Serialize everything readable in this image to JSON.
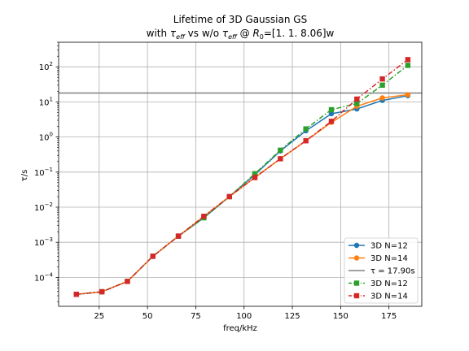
{
  "chart_data": {
    "type": "line",
    "title": "Lifetime of 3D Gaussian GS",
    "subtitle": {
      "pre": "with ",
      "tau": "τ",
      "sub1": "eff",
      "mid": " vs w/o ",
      "tau2": "τ",
      "sub2": "eff",
      "at": " @ ",
      "R": "R",
      "sub3": "0",
      "post": "=[1.   1.   8.06]w"
    },
    "xlabel": "freq/kHz",
    "ylabel": "τ/s",
    "xlim": [
      4,
      192
    ],
    "ylim": [
      1.5e-05,
      500
    ],
    "yscale": "log",
    "grid": true,
    "legend_position": "lower-right",
    "x_ticks": [
      25,
      50,
      75,
      100,
      125,
      150,
      175
    ],
    "y_ticks": [
      {
        "exp": -4,
        "label_base": "10",
        "label_exp": "−4"
      },
      {
        "exp": -3,
        "label_base": "10",
        "label_exp": "−3"
      },
      {
        "exp": -2,
        "label_base": "10",
        "label_exp": "−2"
      },
      {
        "exp": -1,
        "label_base": "10",
        "label_exp": "−1"
      },
      {
        "exp": 0,
        "label_base": "10",
        "label_exp": "0"
      },
      {
        "exp": 1,
        "label_base": "10",
        "label_exp": "1"
      },
      {
        "exp": 2,
        "label_base": "10",
        "label_exp": "2"
      }
    ],
    "hline": {
      "value": 17.9,
      "color": "#808080",
      "label": "τ = 17.90s"
    },
    "series": [
      {
        "name": "3D N=12",
        "color": "#1f77b4",
        "marker": "circle",
        "linestyle": "solid",
        "x": [
          13.2,
          26.4,
          39.6,
          52.8,
          66.0,
          79.2,
          92.4,
          105.6,
          118.8,
          132.0,
          145.2,
          158.4,
          171.6,
          184.8
        ],
        "values": [
          3.3e-05,
          3.9e-05,
          7.7e-05,
          0.0004,
          0.0015,
          0.005,
          0.02,
          0.085,
          0.4,
          1.5,
          4.6,
          6.3,
          11,
          15
        ]
      },
      {
        "name": "3D N=14",
        "color": "#ff7f0e",
        "marker": "circle",
        "linestyle": "solid",
        "x": [
          13.2,
          26.4,
          39.6,
          52.8,
          66.0,
          79.2,
          92.4,
          105.6,
          118.8,
          132.0,
          145.2,
          158.4,
          171.6,
          184.8
        ],
        "values": [
          3.3e-05,
          3.9e-05,
          7.7e-05,
          0.0004,
          0.0015,
          0.0055,
          0.02,
          0.07,
          0.24,
          0.78,
          2.6,
          7.5,
          13,
          16
        ]
      },
      {
        "name": "3D N=12",
        "color": "#2ca02c",
        "marker": "square",
        "linestyle": "dashdot",
        "x": [
          13.2,
          26.4,
          39.6,
          52.8,
          66.0,
          79.2,
          92.4,
          105.6,
          118.8,
          132.0,
          145.2,
          158.4,
          171.6,
          184.8
        ],
        "values": [
          3.3e-05,
          3.9e-05,
          7.7e-05,
          0.0004,
          0.0015,
          0.005,
          0.02,
          0.09,
          0.42,
          1.7,
          6.0,
          9.0,
          30,
          110
        ]
      },
      {
        "name": "3D N=14",
        "color": "#d62728",
        "marker": "square",
        "linestyle": "dashdot",
        "x": [
          13.2,
          26.4,
          39.6,
          52.8,
          66.0,
          79.2,
          92.4,
          105.6,
          118.8,
          132.0,
          145.2,
          158.4,
          171.6,
          184.8
        ],
        "values": [
          3.3e-05,
          3.9e-05,
          7.7e-05,
          0.0004,
          0.0015,
          0.0055,
          0.02,
          0.07,
          0.24,
          0.78,
          2.8,
          12,
          45,
          160
        ]
      }
    ]
  }
}
